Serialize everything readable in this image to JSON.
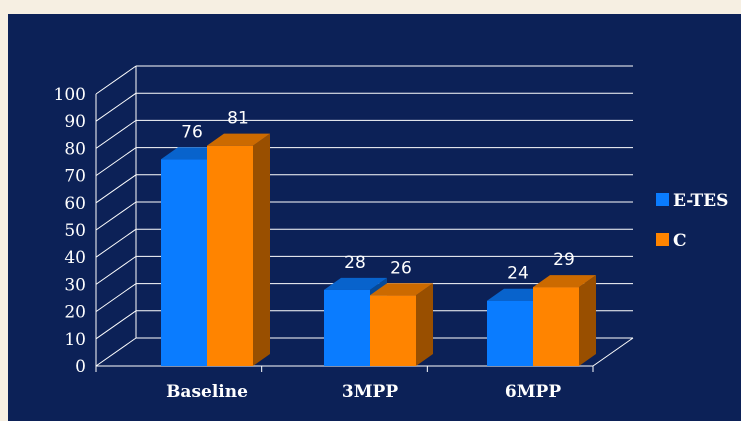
{
  "chart_data": {
    "type": "bar",
    "categories": [
      "Baseline",
      "3MPP",
      "6MPP"
    ],
    "series": [
      {
        "name": "E-TES",
        "values": [
          76,
          28,
          24
        ],
        "color": "#0a7cff"
      },
      {
        "name": "C",
        "values": [
          81,
          26,
          29
        ],
        "color": "#ff8400"
      }
    ],
    "ylim": [
      0,
      100
    ],
    "yticks": [
      0,
      10,
      20,
      30,
      40,
      50,
      60,
      70,
      80,
      90,
      100
    ],
    "grid": true,
    "three_d": true,
    "legend_position": "right",
    "title": "",
    "xlabel": "",
    "ylabel": ""
  }
}
